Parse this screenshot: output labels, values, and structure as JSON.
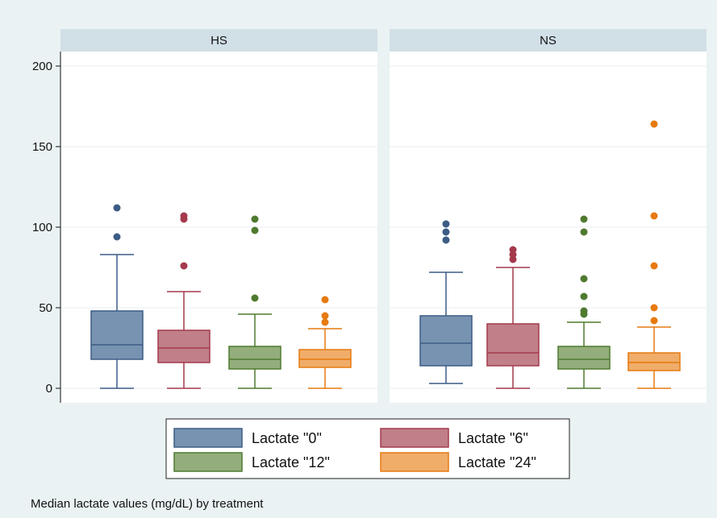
{
  "chart_data": {
    "type": "box",
    "note": "Median lactate values (mg/dL) by treatment",
    "ylim": [
      0,
      200
    ],
    "yticks": [
      0,
      50,
      100,
      150,
      200
    ],
    "grid": true,
    "legend_position": "bottom",
    "series": [
      {
        "name": "Lactate \"0\"",
        "color": "#3c5c85",
        "fill": "#7893b1"
      },
      {
        "name": "Lactate \"6\"",
        "color": "#a43a4c",
        "fill": "#c07f89"
      },
      {
        "name": "Lactate \"12\"",
        "color": "#4f7a2f",
        "fill": "#93ae7c"
      },
      {
        "name": "Lactate \"24\"",
        "color": "#e67a10",
        "fill": "#f0ad6a"
      }
    ],
    "panels": [
      {
        "name": "HS",
        "boxes": [
          {
            "whisker_low": 0,
            "q1": 18,
            "median": 27,
            "q3": 48,
            "whisker_high": 83,
            "outliers": [
              94,
              112
            ]
          },
          {
            "whisker_low": 0,
            "q1": 16,
            "median": 25,
            "q3": 36,
            "whisker_high": 60,
            "outliers": [
              76,
              105,
              107
            ]
          },
          {
            "whisker_low": 0,
            "q1": 12,
            "median": 18,
            "q3": 26,
            "whisker_high": 46,
            "outliers": [
              56,
              98,
              105
            ]
          },
          {
            "whisker_low": 0,
            "q1": 13,
            "median": 18,
            "q3": 24,
            "whisker_high": 37,
            "outliers": [
              41,
              45,
              55
            ]
          }
        ]
      },
      {
        "name": "NS",
        "boxes": [
          {
            "whisker_low": 3,
            "q1": 14,
            "median": 28,
            "q3": 45,
            "whisker_high": 72,
            "outliers": [
              92,
              97,
              102
            ]
          },
          {
            "whisker_low": 0,
            "q1": 14,
            "median": 22,
            "q3": 40,
            "whisker_high": 75,
            "outliers": [
              80,
              83,
              86
            ]
          },
          {
            "whisker_low": 0,
            "q1": 12,
            "median": 18,
            "q3": 26,
            "whisker_high": 41,
            "outliers": [
              46,
              48,
              57,
              68,
              97,
              105
            ]
          },
          {
            "whisker_low": 0,
            "q1": 11,
            "median": 16,
            "q3": 22,
            "whisker_high": 38,
            "outliers": [
              42,
              50,
              76,
              107,
              164
            ]
          }
        ]
      }
    ]
  }
}
